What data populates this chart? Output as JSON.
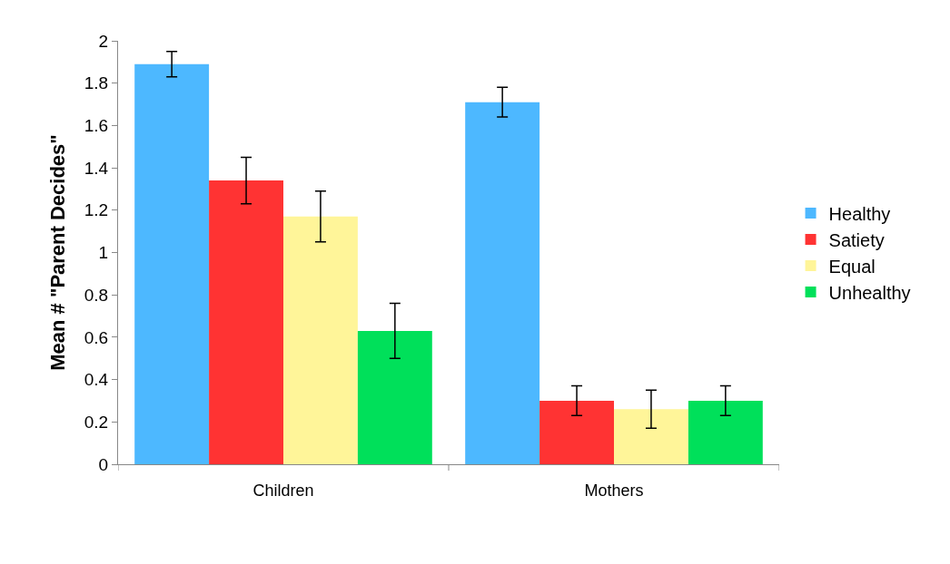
{
  "chart_data": {
    "type": "bar",
    "ylabel": "Mean # \"Parent Decides\"",
    "categories": [
      "Children",
      "Mothers"
    ],
    "series": [
      {
        "name": "Healthy",
        "color": "#4db8ff",
        "values": [
          1.89,
          1.71
        ],
        "errors": [
          0.06,
          0.07
        ]
      },
      {
        "name": "Satiety",
        "color": "#ff3333",
        "values": [
          1.34,
          0.3
        ],
        "errors": [
          0.11,
          0.07
        ]
      },
      {
        "name": "Equal",
        "color": "#fff599",
        "values": [
          1.17,
          0.26
        ],
        "errors": [
          0.12,
          0.09
        ]
      },
      {
        "name": "Unhealthy",
        "color": "#00e05a",
        "values": [
          0.63,
          0.3
        ],
        "errors": [
          0.13,
          0.07
        ]
      }
    ],
    "ylim": [
      0,
      2
    ],
    "yticks": [
      0,
      0.2,
      0.4,
      0.6,
      0.8,
      1,
      1.2,
      1.4,
      1.6,
      1.8,
      2
    ],
    "legend": "right"
  }
}
